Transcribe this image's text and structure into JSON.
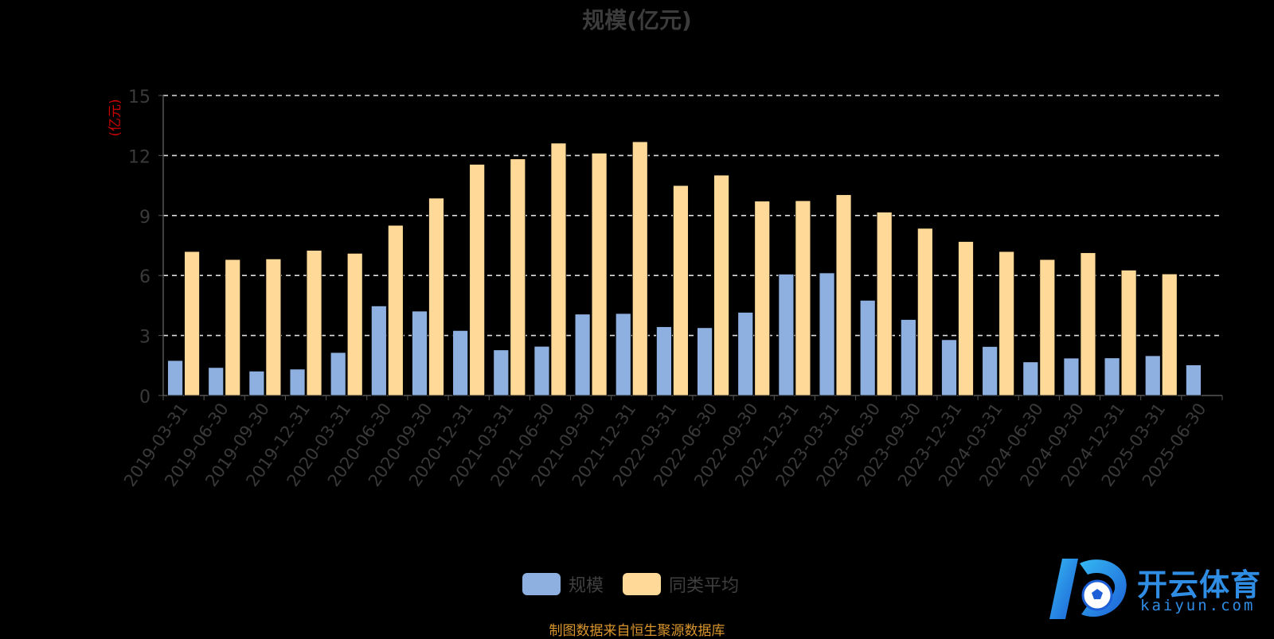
{
  "chart_data": {
    "type": "bar",
    "title": "规模(亿元)",
    "ylabel": "(亿元)",
    "xlabel": "",
    "ylim": [
      0,
      15
    ],
    "yticks": [
      0,
      3,
      6,
      9,
      12,
      15
    ],
    "grid": true,
    "legend_position": "bottom",
    "categories": [
      "2019-03-31",
      "2019-06-30",
      "2019-09-30",
      "2019-12-31",
      "2020-03-31",
      "2020-06-30",
      "2020-09-30",
      "2020-12-31",
      "2021-03-31",
      "2021-06-30",
      "2021-09-30",
      "2021-12-31",
      "2022-03-31",
      "2022-06-30",
      "2022-09-30",
      "2022-12-31",
      "2023-03-31",
      "2023-06-30",
      "2023-09-30",
      "2023-12-31",
      "2024-03-31",
      "2024-06-30",
      "2024-09-30",
      "2024-12-31",
      "2025-03-31",
      "2025-06-30"
    ],
    "series": [
      {
        "name": "规模",
        "color": "#8eb0e0",
        "values": [
          1.75,
          1.4,
          1.22,
          1.32,
          2.15,
          4.48,
          4.22,
          3.25,
          2.28,
          2.46,
          4.07,
          4.1,
          3.44,
          3.39,
          4.16,
          6.07,
          6.13,
          4.76,
          3.8,
          2.79,
          2.45,
          1.68,
          1.87,
          1.88,
          1.99,
          1.53
        ]
      },
      {
        "name": "同类平均",
        "color": "#fed997",
        "values": [
          7.2,
          6.8,
          6.83,
          7.26,
          7.11,
          8.51,
          9.87,
          11.56,
          11.83,
          12.62,
          12.12,
          12.69,
          10.5,
          11.02,
          9.72,
          9.74,
          10.04,
          9.17,
          8.36,
          7.7,
          7.2,
          6.8,
          7.14,
          6.27,
          6.08,
          null
        ]
      }
    ]
  },
  "source_note": "制图数据来自恒生聚源数据库",
  "watermark": {
    "brand": "开云体育",
    "url": "kaiyun.com"
  }
}
